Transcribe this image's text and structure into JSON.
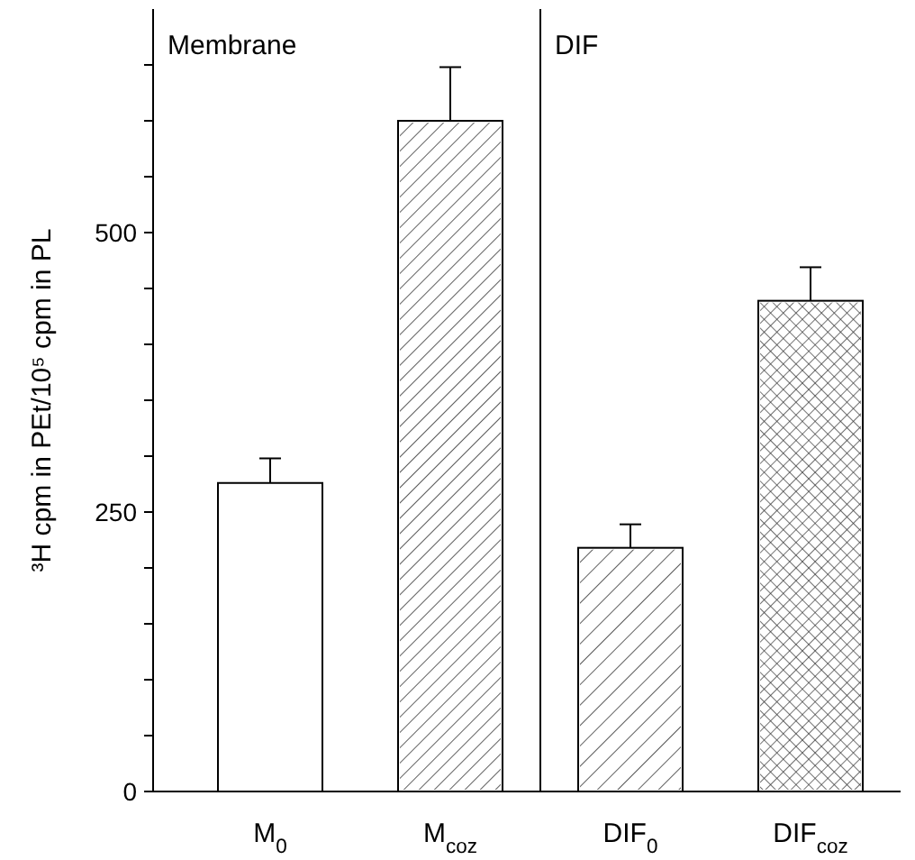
{
  "chart_data": {
    "type": "bar",
    "ylabel": "³H cpm in PEt/10⁵ cpm in PL",
    "categories": [
      "M$_{0}$",
      "M$_{coz}$",
      "DIF$_{0}$",
      "DIF$_{coz}$"
    ],
    "values": [
      276,
      600,
      218,
      439
    ],
    "errors": [
      [
        276,
        298
      ],
      [
        600,
        648
      ],
      [
        218,
        239
      ],
      [
        439,
        469
      ]
    ],
    "colors": [
      "#ffffff",
      "#ffffff",
      "#ffffff",
      "#ffffff"
    ],
    "ylim": [
      0,
      700
    ],
    "yticks": [
      0,
      {
        "value": 50,
        "label": null
      },
      {
        "value": 100,
        "label": null
      },
      {
        "value": 150,
        "label": null
      },
      {
        "value": 200,
        "label": null
      },
      250,
      {
        "value": 300,
        "label": null
      },
      {
        "value": 350,
        "label": null
      },
      {
        "value": 400,
        "label": null
      },
      {
        "value": 450,
        "label": null
      },
      500,
      {
        "value": 550,
        "label": null
      },
      {
        "value": 600,
        "label": null
      },
      {
        "value": 650,
        "label": null
      }
    ],
    "annotations": [
      "Membrane",
      "DIF"
    ]
  }
}
